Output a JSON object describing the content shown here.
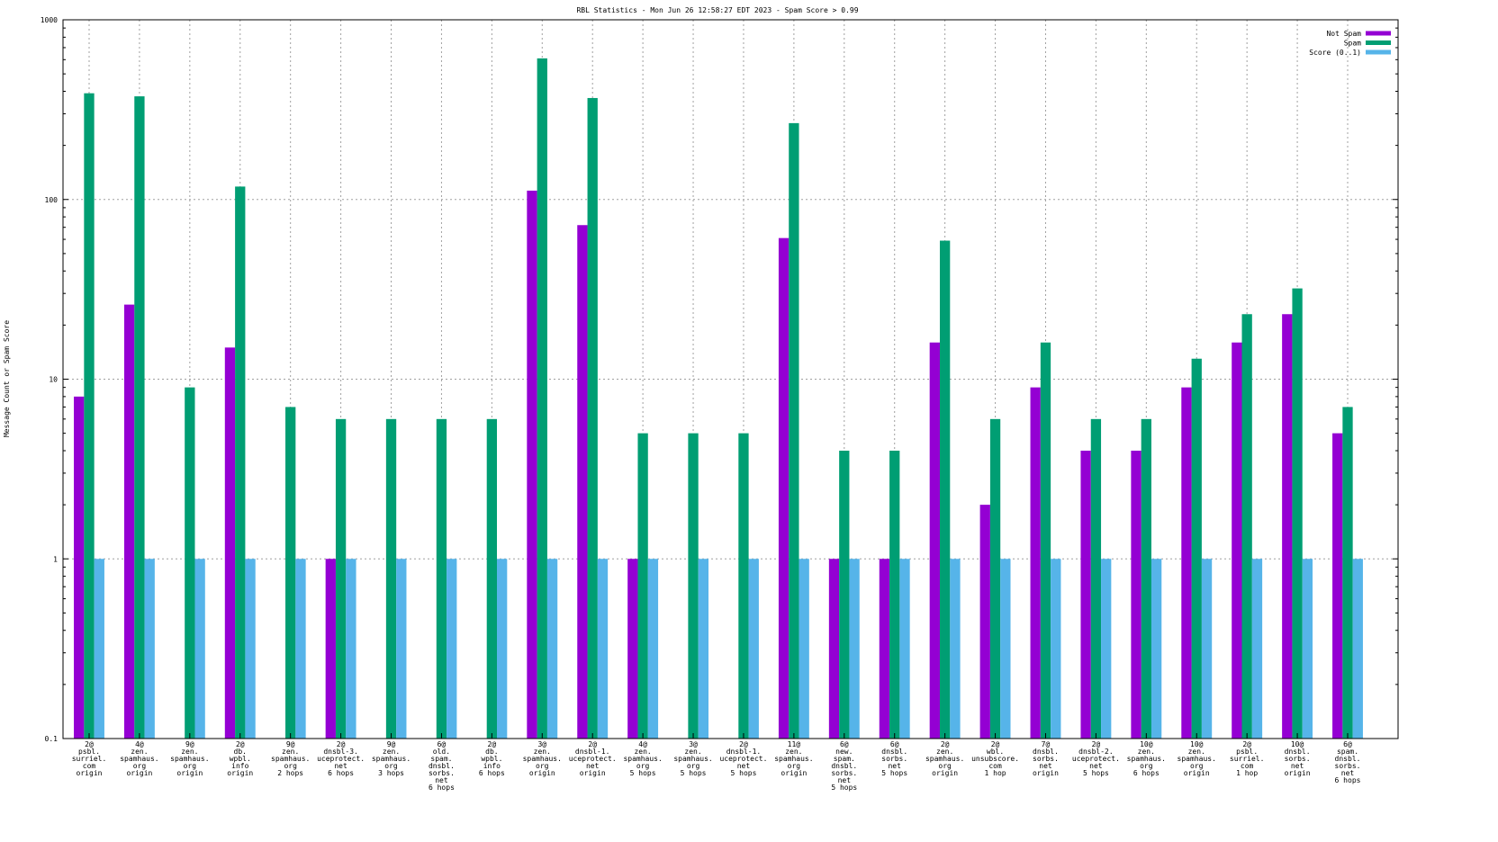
{
  "chart_data": {
    "type": "bar",
    "title": "RBL Statistics - Mon Jun 26 12:58:27 EDT 2023 - Spam Score > 0.99",
    "xlabel": "",
    "ylabel": "Message Count or Spam Score",
    "yscale": "log",
    "ylim": [
      0.1,
      1000
    ],
    "yticks": [
      "0.1",
      "1",
      "10",
      "100",
      "1000"
    ],
    "grid": true,
    "legend_position": "top-right",
    "categories": [
      [
        "2@",
        "psbl.",
        "surriel.",
        "com",
        "origin"
      ],
      [
        "4@",
        "zen.",
        "spamhaus.",
        "org",
        "origin"
      ],
      [
        "9@",
        "zen.",
        "spamhaus.",
        "org",
        "origin"
      ],
      [
        "2@",
        "db.",
        "wpbl.",
        "info",
        "origin"
      ],
      [
        "9@",
        "zen.",
        "spamhaus.",
        "org",
        "2 hops"
      ],
      [
        "2@",
        "dnsbl-3.",
        "uceprotect.",
        "net",
        "6 hops"
      ],
      [
        "9@",
        "zen.",
        "spamhaus.",
        "org",
        "3 hops"
      ],
      [
        "6@",
        "old.",
        "spam.",
        "dnsbl.",
        "sorbs.",
        "net",
        "6 hops"
      ],
      [
        "2@",
        "db.",
        "wpbl.",
        "info",
        "6 hops"
      ],
      [
        "3@",
        "zen.",
        "spamhaus.",
        "org",
        "origin"
      ],
      [
        "2@",
        "dnsbl-1.",
        "uceprotect.",
        "net",
        "origin"
      ],
      [
        "4@",
        "zen.",
        "spamhaus.",
        "org",
        "5 hops"
      ],
      [
        "3@",
        "zen.",
        "spamhaus.",
        "org",
        "5 hops"
      ],
      [
        "2@",
        "dnsbl-1.",
        "uceprotect.",
        "net",
        "5 hops"
      ],
      [
        "11@",
        "zen.",
        "spamhaus.",
        "org",
        "origin"
      ],
      [
        "6@",
        "new.",
        "spam.",
        "dnsbl.",
        "sorbs.",
        "net",
        "5 hops"
      ],
      [
        "6@",
        "dnsbl.",
        "sorbs.",
        "net",
        "5 hops"
      ],
      [
        "2@",
        "zen.",
        "spamhaus.",
        "org",
        "origin"
      ],
      [
        "2@",
        "wbl.",
        "unsubscore.",
        "com",
        "1 hop"
      ],
      [
        "7@",
        "dnsbl.",
        "sorbs.",
        "net",
        "origin"
      ],
      [
        "2@",
        "dnsbl-2.",
        "uceprotect.",
        "net",
        "5 hops"
      ],
      [
        "10@",
        "zen.",
        "spamhaus.",
        "org",
        "6 hops"
      ],
      [
        "10@",
        "zen.",
        "spamhaus.",
        "org",
        "origin"
      ],
      [
        "2@",
        "psbl.",
        "surriel.",
        "com",
        "1 hop"
      ],
      [
        "10@",
        "dnsbl.",
        "sorbs.",
        "net",
        "origin"
      ],
      [
        "6@",
        "spam.",
        "dnsbl.",
        "sorbs.",
        "net",
        "6 hops"
      ]
    ],
    "series": [
      {
        "name": "Not Spam",
        "color": "#9400d3",
        "values": [
          8,
          26,
          null,
          15,
          null,
          1,
          null,
          null,
          null,
          112,
          72,
          1,
          null,
          null,
          61,
          1,
          1,
          16,
          2,
          9,
          4,
          4,
          9,
          16,
          23,
          5
        ]
      },
      {
        "name": "Spam",
        "color": "#009e73",
        "values": [
          390,
          375,
          9,
          118,
          7,
          6,
          6,
          6,
          6,
          610,
          367,
          5,
          5,
          5,
          266,
          4,
          4,
          59,
          6,
          16,
          6,
          6,
          13,
          23,
          32,
          7
        ]
      },
      {
        "name": "Score (0..1)",
        "color": "#56b4e9",
        "values": [
          1,
          1,
          1,
          1,
          1,
          1,
          1,
          1,
          1,
          1,
          1,
          1,
          1,
          1,
          1,
          1,
          1,
          1,
          1,
          1,
          1,
          1,
          1,
          1,
          1,
          1
        ]
      }
    ]
  }
}
